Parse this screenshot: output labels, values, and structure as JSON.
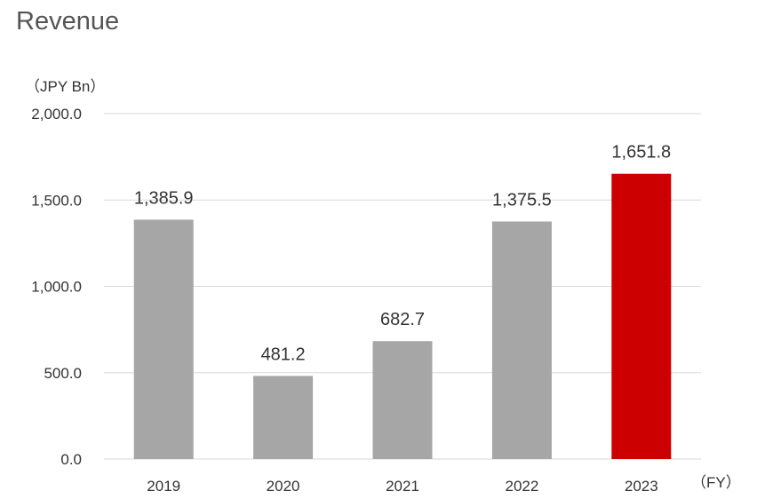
{
  "chart_data": {
    "type": "bar",
    "title": "Revenue",
    "ylabel": "（JPY Bn）",
    "xlabel": "（FY）",
    "categories": [
      "2019",
      "2020",
      "2021",
      "2022",
      "2023"
    ],
    "values": [
      1385.9,
      481.2,
      682.7,
      1375.5,
      1651.8
    ],
    "data_labels": [
      "1,385.9",
      "481.2",
      "682.7",
      "1,375.5",
      "1,651.8"
    ],
    "yticks": [
      0,
      500,
      1000,
      1500,
      2000
    ],
    "ytick_labels": [
      "0.0",
      "500.0",
      "1,000.0",
      "1,500.0",
      "2,000.0"
    ],
    "ylim": [
      0,
      2000
    ],
    "grid": true,
    "highlight_index": 4,
    "colors": {
      "bar": "#a6a6a6",
      "highlight": "#cc0000",
      "grid": "#d9d9d9"
    }
  }
}
